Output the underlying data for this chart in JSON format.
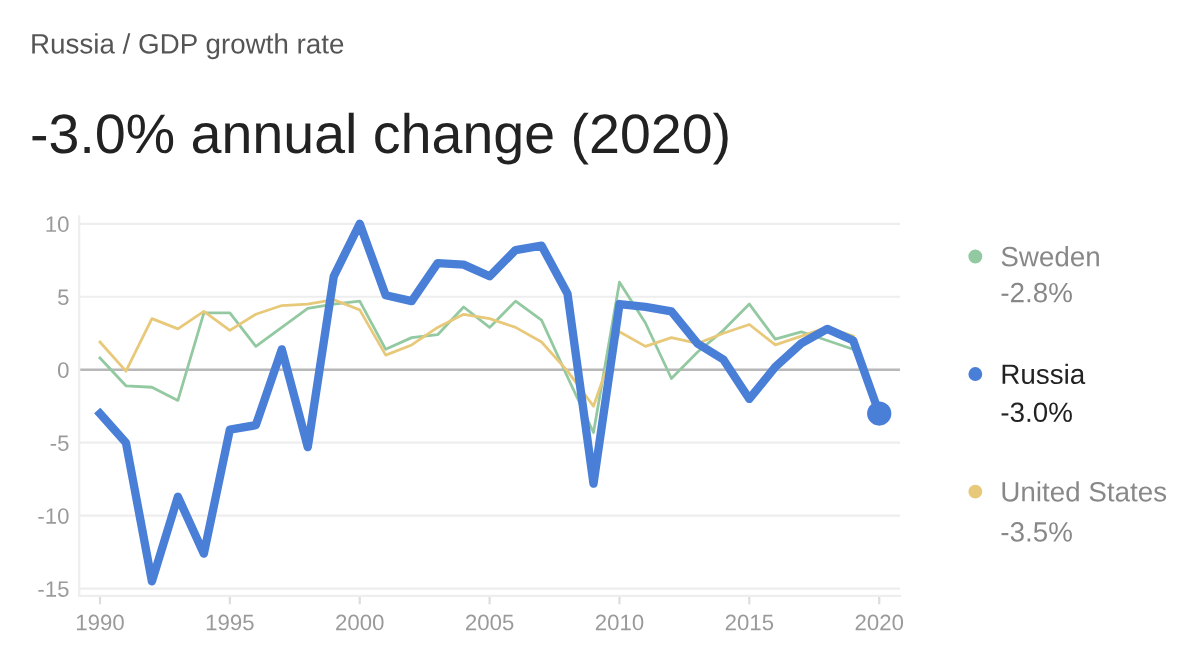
{
  "chart_data": {
    "type": "line",
    "title": "-3.0% annual change (2020)",
    "annotations": [
      "Russia / GDP growth rate",
      "-2.8%",
      "-3.0%",
      "-3.5%"
    ],
    "x": [
      1990,
      1991,
      1992,
      1993,
      1994,
      1995,
      1996,
      1997,
      1998,
      1999,
      2000,
      2001,
      2002,
      2003,
      2004,
      2005,
      2006,
      2007,
      2008,
      2009,
      2010,
      2011,
      2012,
      2013,
      2014,
      2015,
      2016,
      2017,
      2018,
      2019,
      2020
    ],
    "series": [
      {
        "name": "Sweden",
        "color": "#93c9a1",
        "values": [
          0.8,
          -1.1,
          -1.2,
          -2.1,
          3.9,
          3.9,
          1.6,
          2.9,
          4.2,
          4.5,
          4.7,
          1.4,
          2.2,
          2.4,
          4.3,
          2.9,
          4.7,
          3.4,
          -0.5,
          -4.3,
          6.0,
          3.2,
          -0.6,
          1.2,
          2.7,
          4.5,
          2.1,
          2.6,
          2.0,
          1.4,
          null
        ]
      },
      {
        "name": "United States",
        "color": "#e8c97a",
        "values": [
          1.9,
          -0.1,
          3.5,
          2.8,
          4.0,
          2.7,
          3.8,
          4.4,
          4.5,
          4.8,
          4.1,
          1.0,
          1.7,
          2.9,
          3.8,
          3.5,
          2.9,
          1.9,
          -0.1,
          -2.5,
          2.6,
          1.6,
          2.2,
          1.8,
          2.5,
          3.1,
          1.7,
          2.3,
          2.9,
          2.3,
          null
        ]
      },
      {
        "name": "Russia",
        "color": "#4a7fd8",
        "values": [
          -3.0,
          -5.0,
          -14.5,
          -8.7,
          -12.6,
          -4.1,
          -3.8,
          1.4,
          -5.3,
          6.4,
          10.0,
          5.1,
          4.7,
          7.3,
          7.2,
          6.4,
          8.2,
          8.5,
          5.2,
          -7.8,
          4.5,
          4.3,
          4.0,
          1.8,
          0.7,
          -2.0,
          0.2,
          1.8,
          2.8,
          2.0,
          -3.0
        ]
      },
      {
        "type": "scatter",
        "color": "#4a7fd8",
        "x": [
          2020
        ],
        "values": [
          -3.0
        ]
      }
    ],
    "xlim": [
      1989.2,
      2020.8
    ],
    "xticks": [
      1990,
      1995,
      2000,
      2005,
      2010,
      2015,
      2020
    ],
    "ylim": [
      -15.5,
      10.5
    ],
    "yticks": [
      -15,
      -10,
      -5,
      0,
      5,
      10
    ],
    "ref_lines": [
      {
        "axis": "y",
        "value": 0,
        "color": "#b8b8b8"
      }
    ],
    "grid": "y",
    "legend": "right"
  }
}
